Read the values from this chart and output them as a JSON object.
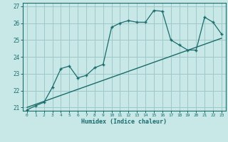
{
  "title": "",
  "xlabel": "Humidex (Indice chaleur)",
  "background_color": "#c8e8e8",
  "grid_color": "#a0c8c8",
  "line_color": "#1a6b6b",
  "xlim": [
    -0.5,
    23.5
  ],
  "ylim": [
    20.8,
    27.2
  ],
  "yticks": [
    21,
    22,
    23,
    24,
    25,
    26,
    27
  ],
  "xticks": [
    0,
    1,
    2,
    3,
    4,
    5,
    6,
    7,
    8,
    9,
    10,
    11,
    12,
    13,
    14,
    15,
    16,
    17,
    18,
    19,
    20,
    21,
    22,
    23
  ],
  "data_x": [
    0,
    1,
    2,
    3,
    4,
    5,
    6,
    7,
    8,
    9,
    10,
    11,
    12,
    13,
    14,
    15,
    16,
    17,
    18,
    19,
    20,
    21,
    22,
    23
  ],
  "data_y": [
    20.85,
    21.1,
    21.3,
    22.2,
    23.3,
    23.45,
    22.75,
    22.9,
    23.35,
    23.55,
    25.75,
    26.0,
    26.15,
    26.05,
    26.05,
    26.75,
    26.7,
    25.0,
    24.7,
    24.4,
    24.4,
    26.35,
    26.05,
    25.35
  ],
  "trend_x": [
    0,
    23
  ],
  "trend_y": [
    21.0,
    25.1
  ]
}
